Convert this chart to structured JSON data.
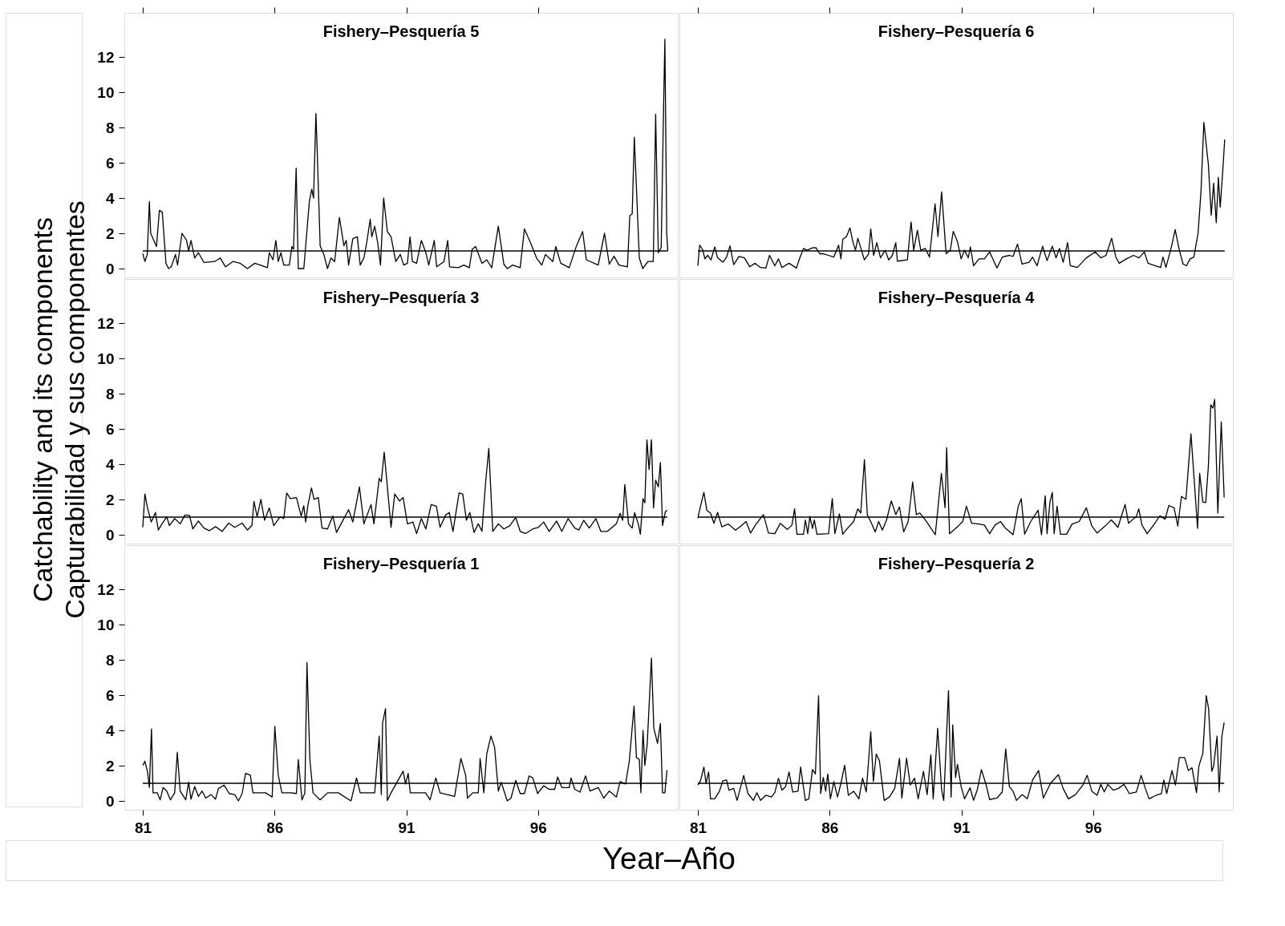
{
  "chart_data": [
    {
      "type": "line",
      "title": "Fishery–Pesquería 5",
      "tick_labels": "y",
      "xlim": [
        80.3,
        101.3
      ],
      "xticks": [
        81,
        86,
        91,
        96
      ],
      "ylim": [
        -0.5,
        14.5
      ],
      "yticks": [
        0,
        2,
        4,
        6,
        8,
        10,
        12
      ],
      "line_style": "solid",
      "ref_lines": [
        {
          "axis": "y",
          "value": 1,
          "color": "#000000"
        }
      ],
      "x": [
        81.0,
        81.08,
        81.17,
        81.25,
        81.3,
        81.52,
        81.63,
        81.74,
        81.88,
        81.98,
        82.08,
        82.24,
        82.32,
        82.49,
        82.66,
        82.74,
        82.83,
        82.97,
        83.11,
        83.32,
        83.73,
        83.94,
        84.14,
        84.42,
        84.7,
        84.97,
        85.25,
        85.46,
        85.73,
        85.8,
        85.94,
        86.05,
        86.14,
        86.24,
        86.35,
        86.56,
        86.66,
        86.72,
        86.82,
        86.9,
        87.11,
        87.32,
        87.41,
        87.48,
        87.57,
        87.62,
        87.73,
        87.87,
        88.01,
        88.14,
        88.28,
        88.46,
        88.63,
        88.72,
        88.81,
        88.97,
        89.14,
        89.25,
        89.39,
        89.5,
        89.63,
        89.69,
        89.8,
        89.91,
        90.02,
        90.14,
        90.28,
        90.42,
        90.6,
        90.77,
        90.9,
        91.04,
        91.14,
        91.23,
        91.39,
        91.57,
        91.74,
        91.85,
        92.06,
        92.15,
        92.43,
        92.57,
        92.64,
        92.97,
        93.18,
        93.39,
        93.5,
        93.63,
        93.87,
        94.05,
        94.24,
        94.49,
        94.7,
        94.83,
        95.04,
        95.32,
        95.48,
        95.73,
        95.94,
        96.14,
        96.28,
        96.56,
        96.67,
        96.86,
        97.18,
        97.46,
        97.69,
        97.83,
        98.28,
        98.52,
        98.7,
        98.88,
        99.07,
        99.39,
        99.48,
        99.57,
        99.65,
        99.73,
        99.84,
        99.97,
        100.17,
        100.37,
        100.46,
        100.56,
        100.67,
        100.75,
        100.81,
        100.88,
        100.92
      ],
      "series": [
        {
          "color": "#000000",
          "values": [
            0.85,
            0.4,
            0.8,
            3.8,
            2.0,
            1.25,
            3.3,
            3.2,
            0.3,
            0.0,
            0.1,
            0.8,
            0.2,
            2.0,
            1.6,
            1.0,
            1.6,
            0.6,
            0.9,
            0.35,
            0.4,
            0.6,
            0.1,
            0.4,
            0.3,
            0.0,
            0.3,
            0.2,
            0.05,
            0.9,
            0.5,
            1.6,
            0.4,
            0.9,
            0.2,
            0.2,
            1.25,
            1.1,
            5.7,
            0.0,
            0.0,
            3.8,
            4.5,
            4.0,
            8.8,
            6.6,
            1.3,
            0.8,
            0.0,
            0.6,
            0.4,
            2.9,
            1.3,
            1.6,
            0.2,
            1.7,
            1.8,
            0.2,
            0.6,
            1.5,
            2.8,
            1.8,
            2.4,
            1.5,
            0.2,
            4.0,
            2.1,
            1.8,
            0.4,
            0.8,
            0.2,
            0.3,
            1.8,
            0.4,
            0.3,
            1.6,
            0.9,
            0.2,
            1.6,
            0.1,
            0.4,
            1.6,
            0.1,
            0.05,
            0.2,
            0.05,
            1.1,
            1.25,
            0.3,
            0.5,
            0.05,
            2.4,
            0.25,
            0.0,
            0.2,
            0.05,
            2.25,
            1.4,
            0.6,
            0.2,
            0.8,
            0.4,
            1.25,
            0.3,
            0.05,
            1.3,
            2.1,
            0.5,
            0.2,
            2.0,
            0.25,
            0.7,
            0.2,
            0.1,
            3.0,
            3.1,
            7.45,
            4.6,
            0.6,
            0.0,
            0.4,
            0.4,
            8.75,
            0.9,
            1.2,
            8.25,
            13.0,
            2.0,
            1.0
          ]
        }
      ]
    },
    {
      "type": "line",
      "title": "Fishery–Pesquería 6",
      "tick_labels": false,
      "xlim": [
        80.3,
        101.3
      ],
      "xticks": [
        81,
        86,
        91,
        96
      ],
      "ylim": [
        -0.5,
        14.5
      ],
      "line_style": "solid",
      "ref_lines": [
        {
          "axis": "y",
          "value": 1,
          "color": "#000000"
        }
      ],
      "x": [
        81.0,
        81.07,
        81.18,
        81.27,
        81.37,
        81.5,
        81.64,
        81.75,
        81.95,
        82.09,
        82.22,
        82.36,
        82.56,
        82.77,
        82.97,
        83.17,
        83.38,
        83.58,
        83.72,
        83.92,
        84.06,
        84.19,
        84.46,
        84.74,
        84.87,
        85.01,
        85.14,
        85.35,
        85.48,
        85.62,
        85.76,
        85.96,
        86.16,
        86.34,
        86.43,
        86.5,
        86.64,
        86.77,
        86.88,
        86.98,
        87.07,
        87.21,
        87.32,
        87.48,
        87.56,
        87.67,
        87.79,
        87.93,
        88.11,
        88.24,
        88.38,
        88.51,
        88.57,
        88.95,
        89.09,
        89.19,
        89.33,
        89.46,
        89.63,
        89.79,
        90.0,
        90.11,
        90.25,
        90.42,
        90.58,
        90.69,
        90.85,
        90.99,
        91.12,
        91.26,
        91.34,
        91.46,
        91.67,
        91.87,
        92.07,
        92.35,
        92.55,
        92.82,
        92.96,
        93.13,
        93.3,
        93.57,
        93.7,
        93.87,
        94.08,
        94.25,
        94.45,
        94.59,
        94.72,
        94.86,
        95.03,
        95.13,
        95.4,
        95.74,
        96.08,
        96.29,
        96.49,
        96.7,
        96.86,
        96.99,
        97.26,
        97.53,
        97.74,
        97.94,
        98.08,
        98.35,
        98.56,
        98.65,
        98.76,
        98.97,
        99.11,
        99.27,
        99.41,
        99.54,
        99.68,
        99.82,
        99.98,
        100.09,
        100.2,
        100.37,
        100.48,
        100.57,
        100.67,
        100.75,
        100.82,
        100.92,
        100.99
      ],
      "series": [
        {
          "color": "#000000",
          "values": [
            0.16,
            1.33,
            1.08,
            0.55,
            0.75,
            0.49,
            1.23,
            0.61,
            0.36,
            0.65,
            1.29,
            0.22,
            0.69,
            0.61,
            0.1,
            0.3,
            0.06,
            0.03,
            0.75,
            0.16,
            0.55,
            0.06,
            0.3,
            0.03,
            0.61,
            1.14,
            1.04,
            1.18,
            1.19,
            0.84,
            0.84,
            0.75,
            0.65,
            1.33,
            0.55,
            1.66,
            1.82,
            2.31,
            1.53,
            1.04,
            1.72,
            1.04,
            0.49,
            0.84,
            2.25,
            0.75,
            1.47,
            0.61,
            1.04,
            0.49,
            0.75,
            1.47,
            0.42,
            0.49,
            2.64,
            1.04,
            2.17,
            1.04,
            1.14,
            0.65,
            3.67,
            1.82,
            4.35,
            0.84,
            1.04,
            2.11,
            1.53,
            0.55,
            1.04,
            0.61,
            1.23,
            0.16,
            0.55,
            0.55,
            0.94,
            0.03,
            0.65,
            0.75,
            0.69,
            1.39,
            0.26,
            0.36,
            0.65,
            0.16,
            1.27,
            0.45,
            1.27,
            0.61,
            1.14,
            0.36,
            1.47,
            0.16,
            0.06,
            0.61,
            0.94,
            0.61,
            0.75,
            1.72,
            0.65,
            0.3,
            0.55,
            0.75,
            0.61,
            0.94,
            0.3,
            0.16,
            0.06,
            0.65,
            0.06,
            1.23,
            2.21,
            1.04,
            0.26,
            0.16,
            0.55,
            0.65,
            2.01,
            4.35,
            8.29,
            5.91,
            3.03,
            4.84,
            2.6,
            5.17,
            3.48,
            5.62,
            7.32
          ]
        }
      ]
    },
    {
      "type": "line",
      "title": "Fishery–Pesquería 3",
      "tick_labels": "y",
      "ylabel": "Catchability and its components\nCapturabilidad y sus componentes",
      "xlim": [
        80.3,
        101.3
      ],
      "ylim": [
        -0.5,
        14.5
      ],
      "yticks": [
        0,
        2,
        4,
        6,
        8,
        10,
        12
      ],
      "line_style": "solid",
      "ref_lines": [
        {
          "axis": "y",
          "value": 1,
          "color": "#000000"
        }
      ],
      "x": [
        81.0,
        81.08,
        81.18,
        81.32,
        81.48,
        81.59,
        81.73,
        81.91,
        82.01,
        82.21,
        82.42,
        82.6,
        82.77,
        82.9,
        83.11,
        83.32,
        83.52,
        83.76,
        84.01,
        84.26,
        84.49,
        84.77,
        84.97,
        85.14,
        85.22,
        85.34,
        85.48,
        85.62,
        85.8,
        85.97,
        86.21,
        86.35,
        86.46,
        86.6,
        86.83,
        87.01,
        87.11,
        87.18,
        87.26,
        87.4,
        87.5,
        87.66,
        87.8,
        88.01,
        88.21,
        88.35,
        88.56,
        88.81,
        88.97,
        89.22,
        89.39,
        89.66,
        89.77,
        89.97,
        90.05,
        90.16,
        90.42,
        90.56,
        90.74,
        90.88,
        91.04,
        91.25,
        91.39,
        91.57,
        91.74,
        91.94,
        92.14,
        92.28,
        92.49,
        92.63,
        92.77,
        93.0,
        93.14,
        93.28,
        93.41,
        93.57,
        93.73,
        93.87,
        94.01,
        94.13,
        94.28,
        94.49,
        94.7,
        94.93,
        95.15,
        95.32,
        95.52,
        95.8,
        96.01,
        96.21,
        96.42,
        96.7,
        96.9,
        97.14,
        97.39,
        97.55,
        97.73,
        97.94,
        98.19,
        98.38,
        98.63,
        98.97,
        99.11,
        99.21,
        99.29,
        99.43,
        99.57,
        99.66,
        99.8,
        99.88,
        99.98,
        100.05,
        100.13,
        100.21,
        100.3,
        100.38,
        100.46,
        100.56,
        100.64,
        100.72,
        100.83,
        100.9
      ],
      "series": [
        {
          "color": "#000000",
          "values": [
            0.42,
            2.31,
            1.52,
            0.72,
            1.26,
            0.27,
            0.62,
            1.02,
            0.52,
            0.92,
            0.62,
            1.12,
            1.1,
            0.33,
            0.78,
            0.38,
            0.23,
            0.46,
            0.19,
            0.66,
            0.42,
            0.66,
            0.27,
            0.52,
            1.89,
            1.02,
            2.01,
            0.82,
            1.52,
            0.52,
            1.02,
            0.92,
            2.37,
            2.05,
            2.11,
            1.06,
            1.65,
            0.72,
            1.62,
            2.65,
            2.01,
            2.11,
            0.38,
            0.33,
            1.06,
            0.13,
            0.72,
            1.42,
            0.72,
            2.71,
            0.62,
            1.71,
            0.62,
            3.2,
            3.0,
            4.69,
            0.42,
            2.31,
            1.91,
            2.11,
            0.62,
            0.72,
            0.07,
            0.92,
            0.33,
            1.71,
            1.62,
            0.42,
            1.12,
            1.26,
            0.19,
            2.37,
            2.31,
            0.82,
            1.26,
            0.13,
            0.62,
            0.19,
            3.0,
            4.89,
            0.19,
            0.62,
            0.33,
            0.52,
            0.98,
            0.19,
            0.07,
            0.33,
            0.42,
            0.72,
            0.19,
            0.78,
            0.19,
            0.92,
            0.38,
            0.27,
            0.82,
            0.38,
            0.92,
            0.19,
            0.19,
            0.62,
            1.22,
            0.82,
            2.85,
            0.62,
            0.38,
            1.26,
            0.62,
            0.03,
            2.05,
            1.81,
            5.38,
            3.7,
            5.38,
            1.52,
            3.1,
            2.71,
            4.1,
            0.52,
            1.32,
            1.38
          ]
        }
      ]
    },
    {
      "type": "line",
      "title": "Fishery–Pesquería 4",
      "tick_labels": false,
      "xlim": [
        80.3,
        101.3
      ],
      "ylim": [
        -0.5,
        14.5
      ],
      "line_style": "solid",
      "ref_lines": [
        {
          "axis": "y",
          "value": 1,
          "color": "#000000"
        }
      ],
      "x": [
        81.0,
        81.1,
        81.23,
        81.34,
        81.48,
        81.61,
        81.75,
        81.91,
        82.15,
        82.43,
        82.63,
        82.83,
        83.0,
        83.21,
        83.49,
        83.68,
        83.92,
        84.13,
        84.4,
        84.57,
        84.67,
        84.76,
        85.01,
        85.08,
        85.17,
        85.25,
        85.35,
        85.42,
        85.52,
        85.96,
        86.1,
        86.2,
        86.37,
        86.5,
        86.64,
        86.91,
        87.07,
        87.18,
        87.32,
        87.43,
        87.59,
        87.73,
        87.86,
        88.0,
        88.16,
        88.34,
        88.51,
        88.65,
        88.81,
        88.98,
        89.15,
        89.29,
        89.42,
        89.63,
        89.79,
        90.01,
        90.24,
        90.38,
        90.44,
        90.55,
        90.85,
        91.05,
        91.19,
        91.39,
        91.67,
        91.87,
        92.07,
        92.28,
        92.48,
        92.68,
        92.96,
        93.16,
        93.27,
        93.4,
        93.63,
        93.91,
        94.04,
        94.18,
        94.25,
        94.36,
        94.45,
        94.52,
        94.63,
        94.76,
        94.99,
        95.2,
        95.47,
        95.74,
        95.95,
        96.15,
        96.42,
        96.69,
        96.94,
        97.21,
        97.34,
        97.64,
        97.73,
        97.85,
        98.05,
        98.32,
        98.53,
        98.73,
        98.87,
        99.07,
        99.21,
        99.35,
        99.52,
        99.71,
        99.85,
        99.96,
        100.04,
        100.16,
        100.27,
        100.37,
        100.46,
        100.54,
        100.61,
        100.73,
        100.86,
        100.97
      ],
      "series": [
        {
          "color": "#000000",
          "values": [
            0.94,
            1.62,
            2.4,
            1.39,
            1.23,
            0.65,
            1.27,
            0.45,
            0.61,
            0.26,
            0.49,
            0.75,
            0.1,
            0.61,
            1.14,
            0.1,
            0.06,
            0.65,
            0.3,
            0.55,
            1.47,
            0.03,
            0.03,
            0.84,
            0.06,
            1.04,
            0.36,
            0.84,
            0.03,
            0.06,
            2.05,
            0.06,
            1.19,
            0.03,
            0.3,
            0.75,
            1.47,
            1.23,
            4.26,
            1.14,
            0.65,
            0.16,
            0.75,
            0.26,
            0.84,
            1.92,
            1.14,
            1.58,
            0.16,
            0.75,
            2.99,
            1.14,
            1.23,
            0.84,
            0.49,
            0.0,
            3.48,
            1.53,
            4.94,
            0.06,
            0.45,
            0.75,
            1.62,
            0.65,
            0.61,
            0.55,
            0.06,
            0.55,
            0.75,
            0.36,
            0.0,
            1.62,
            2.05,
            0.03,
            0.75,
            1.39,
            0.0,
            2.21,
            0.06,
            1.86,
            2.4,
            0.06,
            1.62,
            0.03,
            0.03,
            0.61,
            0.75,
            1.53,
            0.49,
            0.1,
            0.45,
            0.84,
            0.42,
            1.72,
            0.65,
            1.04,
            1.47,
            0.55,
            0.06,
            0.61,
            1.08,
            0.88,
            1.66,
            1.53,
            0.49,
            2.17,
            2.01,
            5.72,
            2.75,
            0.36,
            3.48,
            1.86,
            1.82,
            3.87,
            7.37,
            7.18,
            7.67,
            1.23,
            6.4,
            2.11
          ]
        }
      ]
    },
    {
      "type": "line",
      "title": "Fishery–Pesquería 1",
      "xlabel": "Year–Año",
      "xlim": [
        80.3,
        101.3
      ],
      "xticks": [
        81,
        86,
        91,
        96
      ],
      "ylim": [
        -0.5,
        14.5
      ],
      "yticks": [
        0,
        2,
        4,
        6,
        8,
        10,
        12
      ],
      "line_style": "solid",
      "ref_lines": [
        {
          "axis": "y",
          "value": 1,
          "color": "#000000"
        }
      ],
      "x": [
        81.0,
        81.08,
        81.18,
        81.25,
        81.33,
        81.39,
        81.55,
        81.66,
        81.77,
        81.91,
        82.05,
        82.21,
        82.31,
        82.42,
        82.63,
        82.74,
        82.83,
        82.97,
        83.11,
        83.25,
        83.39,
        83.59,
        83.76,
        83.87,
        84.08,
        84.28,
        84.49,
        84.63,
        84.77,
        84.9,
        85.08,
        85.18,
        85.39,
        85.66,
        85.91,
        86.01,
        86.14,
        86.28,
        86.63,
        86.83,
        86.9,
        87.04,
        87.15,
        87.23,
        87.34,
        87.46,
        87.73,
        88.01,
        88.42,
        88.9,
        89.11,
        89.25,
        89.8,
        89.97,
        90.05,
        90.1,
        90.21,
        90.28,
        90.42,
        90.88,
        90.97,
        91.07,
        91.15,
        91.73,
        91.9,
        92.12,
        92.28,
        92.83,
        93.07,
        93.25,
        93.32,
        93.52,
        93.73,
        93.8,
        93.94,
        94.05,
        94.21,
        94.35,
        94.49,
        94.6,
        94.83,
        94.97,
        95.15,
        95.32,
        95.48,
        95.66,
        95.8,
        95.98,
        96.21,
        96.42,
        96.63,
        96.74,
        96.9,
        97.18,
        97.25,
        97.39,
        97.59,
        97.8,
        97.97,
        98.28,
        98.49,
        98.7,
        98.97,
        99.11,
        99.32,
        99.46,
        99.64,
        99.73,
        99.84,
        99.9,
        99.98,
        100.05,
        100.14,
        100.3,
        100.39,
        100.53,
        100.64,
        100.72,
        100.81,
        100.89
      ],
      "series": [
        {
          "color": "#000000",
          "values": [
            2.01,
            2.25,
            1.65,
            0.76,
            4.08,
            0.46,
            0.46,
            0.06,
            0.76,
            0.56,
            0.06,
            0.46,
            2.75,
            0.56,
            0.06,
            1.06,
            0.1,
            0.82,
            0.26,
            0.56,
            0.16,
            0.36,
            0.1,
            0.7,
            0.9,
            0.42,
            0.36,
            0.0,
            0.42,
            1.56,
            1.46,
            0.46,
            0.46,
            0.46,
            0.22,
            4.23,
            1.46,
            0.46,
            0.46,
            0.42,
            2.35,
            0.06,
            0.46,
            7.84,
            2.35,
            0.46,
            0.06,
            0.46,
            0.46,
            0.0,
            1.3,
            0.46,
            0.46,
            3.68,
            0.36,
            4.43,
            5.23,
            0.02,
            0.46,
            1.69,
            0.96,
            1.56,
            0.46,
            0.46,
            0.06,
            1.3,
            0.46,
            0.26,
            2.41,
            1.46,
            0.16,
            0.46,
            0.46,
            2.41,
            0.46,
            2.65,
            3.68,
            3.04,
            0.56,
            1.06,
            0.0,
            0.16,
            1.16,
            0.42,
            0.42,
            1.42,
            1.3,
            0.42,
            0.86,
            0.66,
            0.66,
            1.36,
            0.76,
            0.76,
            1.3,
            0.66,
            0.5,
            1.42,
            0.56,
            0.76,
            0.16,
            0.56,
            0.22,
            1.1,
            0.96,
            2.25,
            5.38,
            2.45,
            2.35,
            0.46,
            3.99,
            2.01,
            3.23,
            8.1,
            4.13,
            3.27,
            4.39,
            0.46,
            0.46,
            1.75
          ]
        }
      ]
    },
    {
      "type": "line",
      "title": "Fishery–Pesquería 2",
      "tick_labels": "x",
      "xlim": [
        80.3,
        101.3
      ],
      "xticks": [
        81,
        86,
        91,
        96
      ],
      "ylim": [
        -0.5,
        14.5
      ],
      "line_style": "solid",
      "ref_lines": [
        {
          "axis": "y",
          "value": 1,
          "color": "#000000"
        }
      ],
      "x": [
        81.0,
        81.1,
        81.23,
        81.31,
        81.41,
        81.48,
        81.64,
        81.82,
        81.95,
        82.09,
        82.18,
        82.36,
        82.49,
        82.74,
        82.9,
        83.11,
        83.24,
        83.38,
        83.58,
        83.79,
        83.92,
        84.06,
        84.19,
        84.33,
        84.46,
        84.6,
        84.8,
        84.9,
        85.08,
        85.21,
        85.35,
        85.46,
        85.58,
        85.66,
        85.76,
        85.85,
        85.93,
        86.03,
        86.16,
        86.3,
        86.43,
        86.57,
        86.71,
        86.91,
        87.11,
        87.25,
        87.39,
        87.56,
        87.66,
        87.77,
        87.89,
        88.07,
        88.27,
        88.47,
        88.65,
        88.74,
        88.92,
        89.06,
        89.22,
        89.36,
        89.56,
        89.7,
        89.84,
        89.93,
        90.1,
        90.25,
        90.33,
        90.51,
        90.61,
        90.67,
        90.78,
        90.85,
        90.99,
        91.12,
        91.33,
        91.46,
        91.6,
        91.76,
        91.94,
        92.07,
        92.35,
        92.55,
        92.68,
        92.82,
        92.96,
        93.09,
        93.3,
        93.5,
        93.7,
        93.93,
        94.11,
        94.38,
        94.68,
        94.86,
        95.06,
        95.33,
        95.61,
        95.77,
        95.95,
        96.15,
        96.29,
        96.42,
        96.56,
        96.76,
        96.96,
        97.17,
        97.37,
        97.64,
        97.82,
        97.98,
        98.12,
        98.39,
        98.59,
        98.68,
        98.79,
        98.99,
        99.12,
        99.27,
        99.47,
        99.61,
        99.75,
        99.92,
        100.01,
        100.16,
        100.29,
        100.38,
        100.5,
        100.57,
        100.7,
        100.78,
        100.88,
        100.97
      ],
      "series": [
        {
          "color": "#000000",
          "values": [
            0.9,
            1.14,
            1.92,
            1.0,
            1.64,
            0.12,
            0.12,
            0.55,
            1.14,
            1.19,
            0.61,
            0.71,
            0.03,
            1.45,
            0.42,
            0.03,
            0.47,
            0.03,
            0.32,
            0.22,
            0.47,
            1.29,
            0.61,
            0.81,
            1.64,
            0.51,
            0.55,
            1.92,
            0.03,
            0.12,
            1.78,
            1.53,
            5.97,
            0.42,
            1.33,
            0.55,
            1.53,
            0.12,
            1.1,
            0.22,
            1.0,
            2.03,
            0.32,
            0.55,
            0.12,
            1.29,
            0.51,
            3.92,
            1.1,
            2.66,
            2.27,
            0.03,
            0.22,
            0.71,
            2.42,
            0.16,
            2.42,
            0.9,
            1.29,
            0.12,
            1.68,
            0.36,
            2.62,
            0.12,
            4.12,
            0.61,
            0.03,
            6.26,
            0.22,
            4.31,
            1.33,
            2.07,
            0.81,
            0.12,
            0.75,
            0.03,
            0.61,
            1.78,
            0.9,
            0.08,
            0.16,
            0.51,
            2.95,
            0.81,
            0.55,
            0.03,
            0.36,
            0.12,
            1.19,
            1.72,
            0.16,
            1.0,
            1.49,
            0.71,
            0.12,
            0.36,
            0.9,
            1.45,
            0.55,
            0.32,
            0.94,
            0.51,
            0.94,
            0.61,
            0.71,
            0.94,
            0.42,
            0.51,
            1.45,
            0.71,
            0.12,
            0.32,
            0.42,
            1.19,
            0.42,
            1.72,
            0.9,
            2.46,
            2.46,
            1.72,
            1.88,
            0.47,
            1.97,
            2.7,
            5.97,
            5.23,
            1.68,
            1.97,
            3.67,
            0.51,
            3.63,
            4.45
          ]
        }
      ]
    }
  ]
}
